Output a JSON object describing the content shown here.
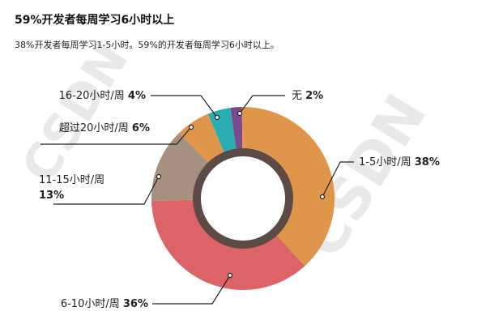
{
  "header": {
    "title": "59%开发者每周学习6小时以上",
    "subtitle": "38%开发者每周学习1-5小时。59%的开发者每周学习6小时以上。"
  },
  "watermark": "CSDN",
  "chart_data": {
    "type": "pie",
    "donut": true,
    "categories": [
      "无",
      "1-5小时/周",
      "6-10小时/周",
      "11-15小时/周",
      "超过20小时/周",
      "16-20小时/周"
    ],
    "values": [
      2,
      38,
      36,
      13,
      6,
      4
    ],
    "colors": [
      "#7a4a8c",
      "#e0964a",
      "#dc6366",
      "#a89080",
      "#e0964a",
      "#2aacb0"
    ],
    "labels": [
      {
        "name": "无",
        "value": "2%"
      },
      {
        "name": "1-5小时/周",
        "value": "38%"
      },
      {
        "name": "6-10小时/周",
        "value": "36%"
      },
      {
        "name": "11-15小时/周",
        "value": "13%"
      },
      {
        "name": "超过20小时/周",
        "value": "6%"
      },
      {
        "name": "16-20小时/周",
        "value": "4%"
      }
    ],
    "legend": "none"
  }
}
